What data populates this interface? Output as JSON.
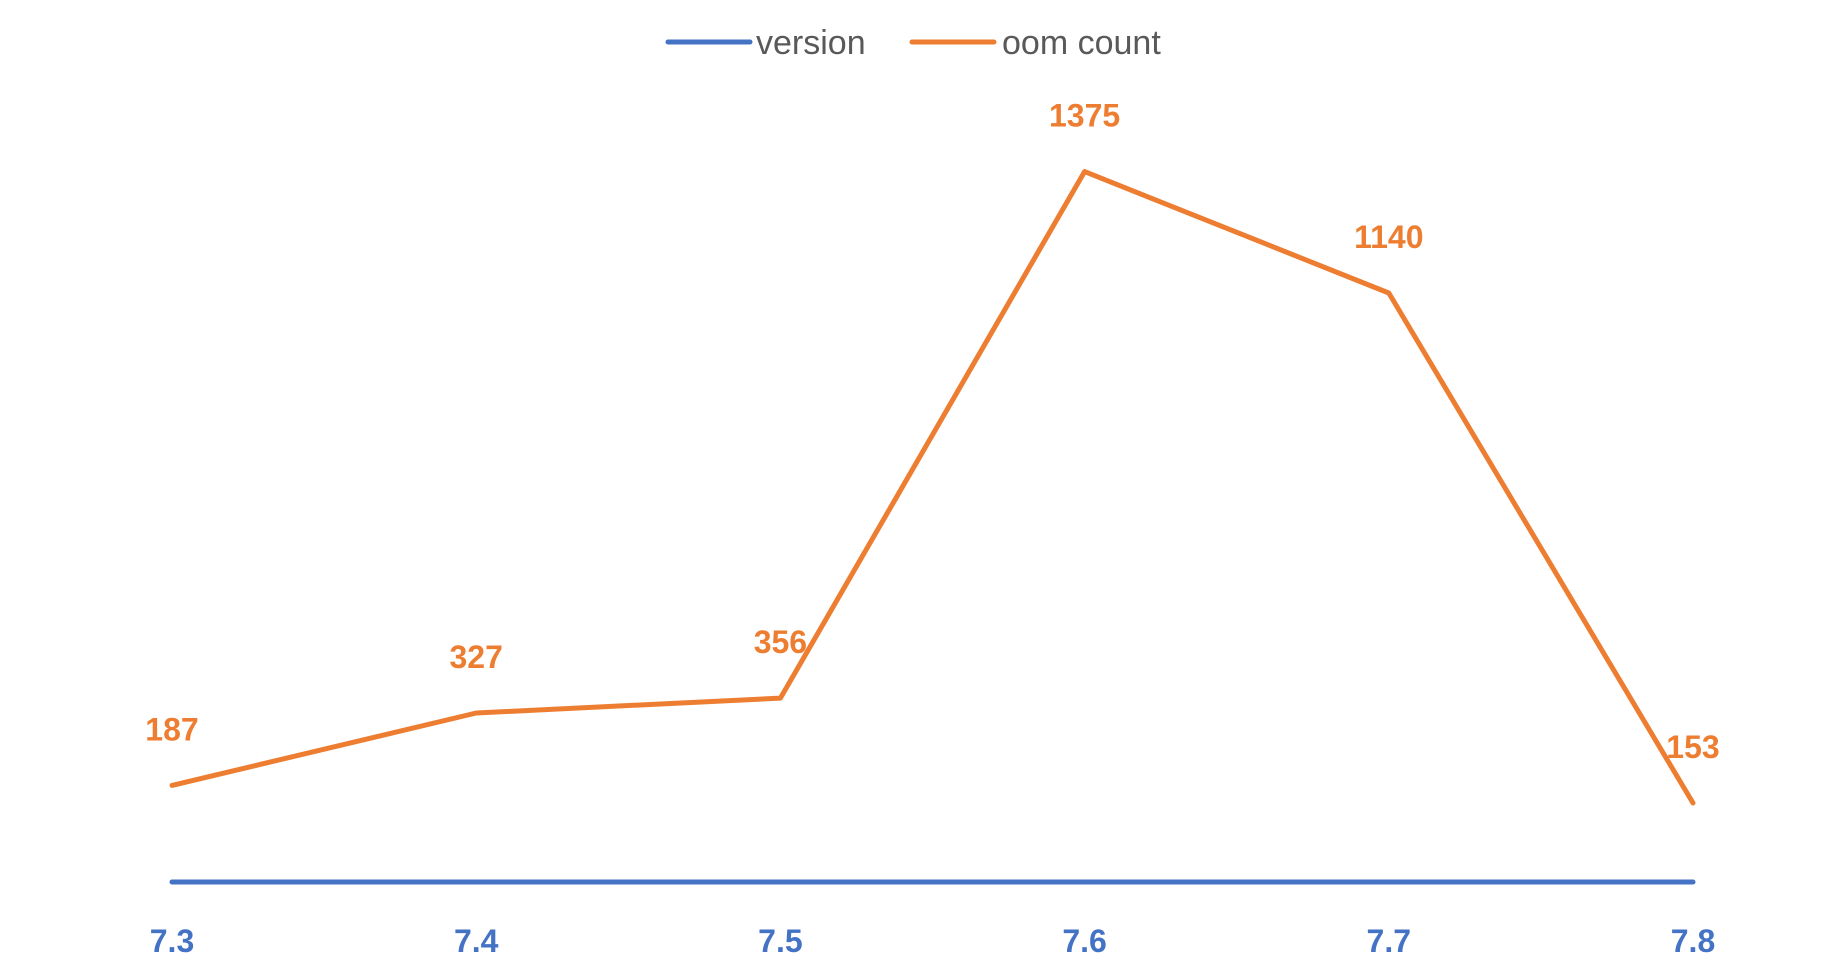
{
  "chart_data": {
    "type": "line",
    "categories": [
      "7.3",
      "7.4",
      "7.5",
      "7.6",
      "7.7",
      "7.8"
    ],
    "series": [
      {
        "name": "version",
        "values": [
          0,
          0,
          0,
          0,
          0,
          0
        ],
        "color": "#4472C4"
      },
      {
        "name": "oom count",
        "values": [
          187,
          327,
          356,
          1375,
          1140,
          153
        ],
        "color": "#ED7D31",
        "data_labels": [
          "187",
          "327",
          "356",
          "1375",
          "1140",
          "153"
        ]
      }
    ],
    "title": "",
    "xlabel": "",
    "ylabel": "",
    "ylim": [
      0,
      1500
    ],
    "grid": false,
    "legend": "top-center",
    "tick_label_color": "#4472C4"
  }
}
